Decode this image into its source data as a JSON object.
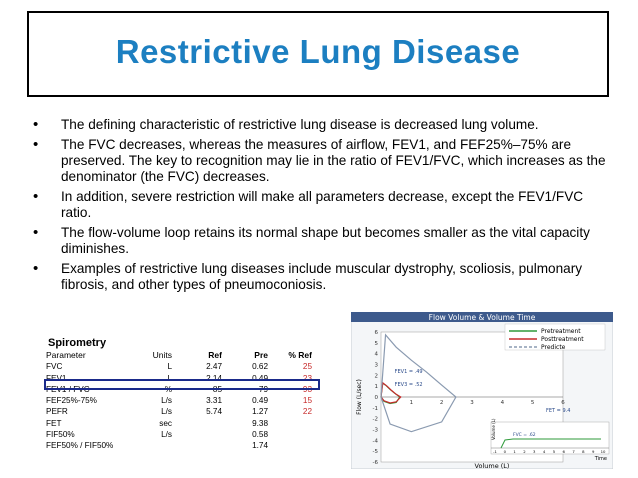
{
  "slide": {
    "title": "Restrictive Lung Disease",
    "bullets": [
      "The defining characteristic of restrictive lung disease is decreased lung volume.",
      "The FVC decreases, whereas the measures of airflow, FEV1, and FEF25%–75% are preserved. The key to recognition may lie in the ratio of FEV1/FVC, which increases as the denominator (the FVC) decreases.",
      "In addition, severe restriction will make all parameters decrease, except the FEV1/FVC ratio.",
      "The flow-volume loop retains its normal shape but becomes smaller as the vital capacity diminishes.",
      "Examples of restrictive lung diseases include muscular dystrophy, scoliosis, pulmonary fibrosis, and other types of pneumoconiosis."
    ]
  },
  "spirometry": {
    "title": "Spirometry",
    "headers": {
      "parameter": "Parameter",
      "units": "Units",
      "ref": "Ref",
      "pre": "Pre",
      "pct_ref": "% Ref"
    },
    "rows": [
      {
        "parameter": "FVC",
        "units": "L",
        "ref": "2.47",
        "pre": "0.62",
        "pct_ref": "25"
      },
      {
        "parameter": "FEV1",
        "units": "L",
        "ref": "2.14",
        "pre": "0.49",
        "pct_ref": "23"
      },
      {
        "parameter": "FEV1 / FVC",
        "units": "%",
        "ref": "85",
        "pre": "79",
        "pct_ref": "93"
      },
      {
        "parameter": "FEF25%-75%",
        "units": "L/s",
        "ref": "3.31",
        "pre": "0.49",
        "pct_ref": "15"
      },
      {
        "parameter": "PEFR",
        "units": "L/s",
        "ref": "5.74",
        "pre": "1.27",
        "pct_ref": "22"
      },
      {
        "parameter": "FET",
        "units": "sec",
        "ref": "",
        "pre": "9.38",
        "pct_ref": ""
      },
      {
        "parameter": "FIF50%",
        "units": "L/s",
        "ref": "",
        "pre": "0.58",
        "pct_ref": ""
      },
      {
        "parameter": "FEF50% / FIF50%",
        "units": "",
        "ref": "",
        "pre": "1.74",
        "pct_ref": ""
      }
    ],
    "highlight_color": "#1a2a8a",
    "pct_color": "#c62828"
  },
  "chart_data": {
    "type": "line",
    "title": "Flow Volume & Volume Time",
    "xlabel": "Volume (L)",
    "ylabel": "Flow (L/sec)",
    "xlim": [
      0,
      6
    ],
    "ylim": [
      -6,
      6
    ],
    "x_ticks": [
      "1",
      "2",
      "3",
      "4",
      "5",
      "6"
    ],
    "y_ticks": [
      "6",
      "5",
      "4",
      "3",
      "2",
      "1",
      "0",
      "-1",
      "-2",
      "-3",
      "-4",
      "-5",
      "-6"
    ],
    "legend": {
      "placement": "top-right",
      "entries": [
        "Pretreatment",
        "Posttreatment",
        "Predicte"
      ]
    },
    "annotations": [
      "FEV1 = .49",
      "FEV3 = .52",
      "FET = 9.4",
      "FVC = .62"
    ],
    "series": [
      {
        "name": "Pretreatment",
        "color": "#2e9a3a",
        "x": [
          0,
          0.05,
          0.15,
          0.3,
          0.45,
          0.6,
          0.62,
          0.5,
          0.3,
          0.1,
          0
        ],
        "y": [
          0,
          1.27,
          1.1,
          0.7,
          0.35,
          0.05,
          0,
          -0.5,
          -0.6,
          -0.4,
          0
        ]
      },
      {
        "name": "Posttreatment",
        "color": "#c62828",
        "x": [
          0,
          0.06,
          0.2,
          0.35,
          0.5,
          0.65,
          0.5,
          0.3,
          0.1,
          0
        ],
        "y": [
          0,
          1.3,
          1.0,
          0.6,
          0.25,
          0,
          -0.45,
          -0.55,
          -0.35,
          0
        ]
      },
      {
        "name": "Predicte",
        "color": "#8a9ab0",
        "x": [
          0,
          0.15,
          0.5,
          1.0,
          1.5,
          2.0,
          2.47,
          2.0,
          1.0,
          0.3,
          0
        ],
        "y": [
          0,
          5.74,
          4.6,
          3.4,
          2.3,
          1.1,
          0,
          -2.3,
          -3.2,
          -2.5,
          0
        ]
      }
    ],
    "inset": {
      "xlabel": "Time",
      "ylabel": "Volume (L)",
      "x_ticks": [
        "-1",
        "0",
        "1",
        "2",
        "3",
        "4",
        "5",
        "6",
        "7",
        "8",
        "9",
        "10"
      ],
      "y_ticks": [
        "1",
        "0"
      ],
      "annotations": [
        "Tt",
        "FVC = .62"
      ]
    }
  }
}
